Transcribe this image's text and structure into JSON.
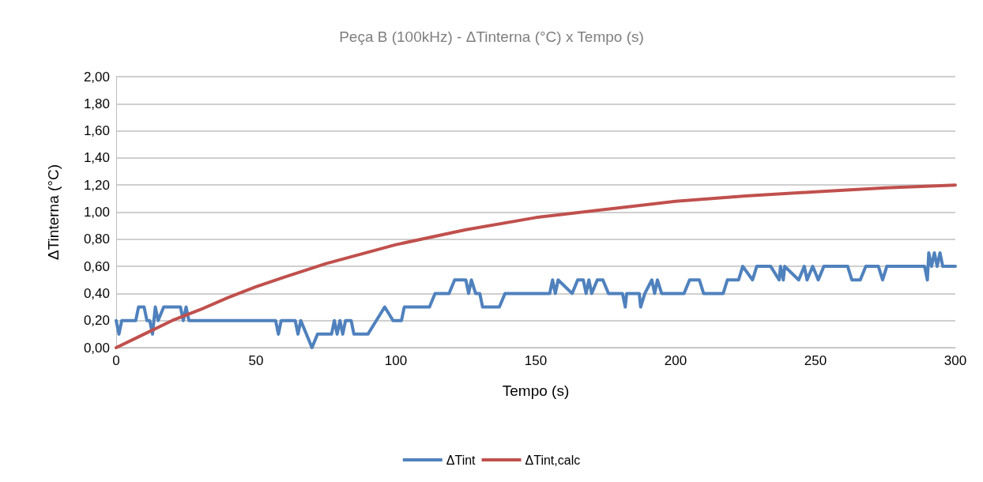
{
  "chart_data": {
    "type": "line",
    "title": "Peça B (100kHz) - ΔTinterna (°C) x Tempo (s)",
    "xlabel": "Tempo (s)",
    "ylabel": "ΔTinterna (°C)",
    "xlim": [
      0,
      300
    ],
    "xticks": [
      0,
      50,
      100,
      150,
      200,
      250,
      300
    ],
    "ylim": [
      0,
      2
    ],
    "yticks": [
      {
        "value": 0,
        "label": "0,00"
      },
      {
        "value": 0.2,
        "label": "0,20"
      },
      {
        "value": 0.4,
        "label": "0,40"
      },
      {
        "value": 0.6,
        "label": "0,60"
      },
      {
        "value": 0.8,
        "label": "0,80"
      },
      {
        "value": 1,
        "label": "1,00"
      },
      {
        "value": 1.2,
        "label": "1,20"
      },
      {
        "value": 1.4,
        "label": "1,40"
      },
      {
        "value": 1.6,
        "label": "1,60"
      },
      {
        "value": 1.8,
        "label": "1,80"
      },
      {
        "value": 2,
        "label": "2,00"
      }
    ],
    "grid": "y",
    "legend": "bottom",
    "marker": "none",
    "line_style": "solid",
    "series": [
      {
        "name": "ΔTint",
        "color": "#4f81bd",
        "x": [
          0,
          1,
          2,
          7,
          8,
          10,
          11,
          12,
          13,
          14,
          15,
          17,
          23,
          24,
          25,
          26,
          57,
          58,
          59,
          64,
          65,
          66,
          68,
          70,
          72,
          77,
          78,
          79,
          80,
          81,
          82,
          84,
          85,
          90,
          93,
          96,
          99,
          102,
          103,
          112,
          114,
          119,
          121,
          125,
          126,
          127,
          128.5,
          130,
          131,
          137,
          139,
          155,
          156,
          157,
          158,
          163,
          165,
          167,
          168,
          169,
          170,
          172,
          174,
          176,
          181,
          182,
          182.5,
          187,
          187.5,
          189,
          191.5,
          192.5,
          193.5,
          195,
          203,
          205,
          208.5,
          210,
          217,
          218.5,
          222.5,
          224,
          227.5,
          229,
          234,
          237,
          237.5,
          238.5,
          239,
          244,
          246,
          247,
          249,
          251,
          253,
          261.5,
          263,
          266,
          268,
          272.5,
          274,
          275.5,
          289,
          290,
          290.5,
          291.5,
          292.5,
          293.5,
          294.5,
          295.5,
          300
        ],
        "values": [
          0.2,
          0.1,
          0.2,
          0.2,
          0.3,
          0.3,
          0.2,
          0.2,
          0.1,
          0.3,
          0.2,
          0.3,
          0.3,
          0.2,
          0.3,
          0.2,
          0.2,
          0.1,
          0.2,
          0.2,
          0.1,
          0.2,
          0.1,
          0.0,
          0.1,
          0.1,
          0.2,
          0.1,
          0.2,
          0.1,
          0.2,
          0.2,
          0.1,
          0.1,
          0.2,
          0.3,
          0.2,
          0.2,
          0.3,
          0.3,
          0.4,
          0.4,
          0.5,
          0.5,
          0.4,
          0.5,
          0.4,
          0.4,
          0.3,
          0.3,
          0.4,
          0.4,
          0.5,
          0.4,
          0.5,
          0.4,
          0.5,
          0.5,
          0.4,
          0.5,
          0.4,
          0.5,
          0.5,
          0.4,
          0.4,
          0.3,
          0.4,
          0.4,
          0.3,
          0.4,
          0.5,
          0.4,
          0.5,
          0.4,
          0.4,
          0.5,
          0.5,
          0.4,
          0.4,
          0.5,
          0.5,
          0.6,
          0.5,
          0.6,
          0.6,
          0.5,
          0.6,
          0.5,
          0.6,
          0.5,
          0.6,
          0.5,
          0.6,
          0.5,
          0.6,
          0.6,
          0.5,
          0.5,
          0.6,
          0.6,
          0.5,
          0.6,
          0.6,
          0.5,
          0.7,
          0.6,
          0.7,
          0.6,
          0.7,
          0.6,
          0.6
        ]
      },
      {
        "name": "ΔTint,calc",
        "color": "#c0504d",
        "x": [
          0,
          10,
          20,
          30,
          40,
          50,
          60,
          75,
          100,
          125,
          150,
          175,
          200,
          225,
          250,
          275,
          300
        ],
        "values": [
          0,
          0.1,
          0.2,
          0.28,
          0.37,
          0.45,
          0.52,
          0.62,
          0.76,
          0.87,
          0.96,
          1.02,
          1.08,
          1.12,
          1.15,
          1.18,
          1.2
        ]
      }
    ]
  }
}
